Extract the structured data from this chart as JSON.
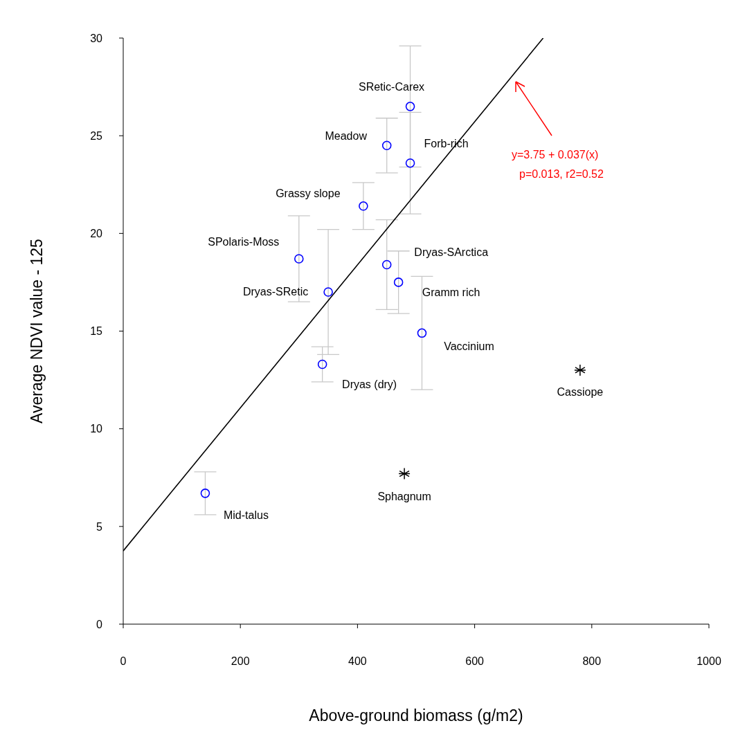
{
  "chart_data": {
    "type": "scatter",
    "xlabel": "Above-ground biomass (g/m2)",
    "ylabel": "Average NDVI value - 125",
    "xlim": [
      0,
      1000
    ],
    "xticks": [
      0,
      200,
      400,
      600,
      800,
      1000
    ],
    "ylim": [
      0,
      30
    ],
    "yticks": [
      0,
      5,
      10,
      15,
      20,
      25,
      30
    ],
    "series": [
      {
        "marker": "circle",
        "color": "#0000ff",
        "x": [
          140,
          300,
          350,
          340,
          410,
          450,
          490,
          490,
          450,
          470,
          510
        ],
        "values": [
          6.7,
          18.7,
          17.0,
          13.3,
          21.4,
          24.5,
          26.5,
          23.6,
          18.4,
          17.5,
          14.9
        ],
        "errors": [
          [
            5.6,
            7.8
          ],
          [
            16.5,
            20.9
          ],
          [
            13.8,
            20.2
          ],
          [
            12.4,
            14.2
          ],
          [
            20.2,
            22.6
          ],
          [
            23.1,
            25.9
          ],
          [
            23.4,
            29.6
          ],
          [
            21.0,
            26.2
          ],
          [
            16.1,
            20.7
          ],
          [
            15.9,
            19.1
          ],
          [
            12.0,
            17.8
          ]
        ]
      },
      {
        "marker": "cross",
        "color": "#000000",
        "x": [
          480,
          780
        ],
        "values": [
          7.7,
          13.0
        ]
      },
      {
        "type": "line",
        "color": "#000000",
        "x": [
          0,
          717
        ],
        "values": [
          3.75,
          30
        ]
      }
    ],
    "annotations": [
      {
        "text": "Mid-talus",
        "x": 140,
        "y": 6.7
      },
      {
        "text": "SPolaris-Moss",
        "x": 300,
        "y": 18.7
      },
      {
        "text": "Dryas-SRetic",
        "x": 350,
        "y": 17.0
      },
      {
        "text": "Dryas (dry)",
        "x": 340,
        "y": 13.3
      },
      {
        "text": "Grassy slope",
        "x": 410,
        "y": 21.4
      },
      {
        "text": "Meadow",
        "x": 450,
        "y": 24.5
      },
      {
        "text": "SRetic-Carex",
        "x": 490,
        "y": 26.5
      },
      {
        "text": "Forb-rich",
        "x": 490,
        "y": 23.6
      },
      {
        "text": "Dryas-SArctica",
        "x": 450,
        "y": 18.4
      },
      {
        "text": "Gramm rich",
        "x": 470,
        "y": 17.5
      },
      {
        "text": "Vaccinium",
        "x": 510,
        "y": 14.9
      },
      {
        "text": "Sphagnum",
        "x": 480,
        "y": 7.7
      },
      {
        "text": "Cassiope",
        "x": 780,
        "y": 13.0
      },
      "y=3.75 + 0.037(x)",
      "p=0.013, r2=0.52"
    ]
  }
}
